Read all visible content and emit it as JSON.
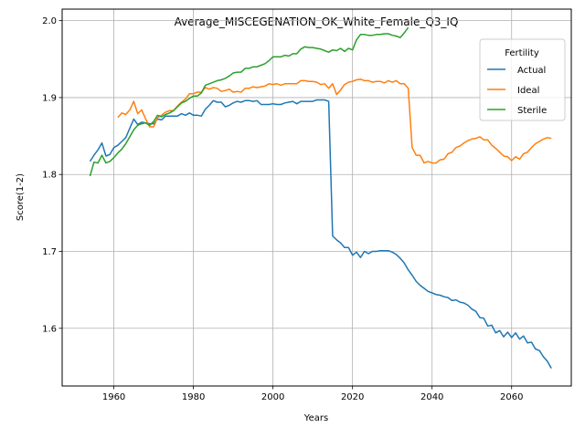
{
  "chart_data": {
    "type": "line",
    "title": "Average_MISCEGENATION_OK_White_Female_Q3_IQ",
    "xlabel": "Years",
    "ylabel": "Score(1-2)",
    "xlim": [
      1947,
      2075
    ],
    "ylim": [
      1.525,
      2.015
    ],
    "x_ticks": [
      1960,
      1980,
      2000,
      2020,
      2040,
      2060
    ],
    "y_ticks": [
      1.6,
      1.7,
      1.8,
      1.9,
      2.0
    ],
    "grid": true,
    "legend": {
      "title": "Fertility",
      "placement": "top-right"
    },
    "series": [
      {
        "name": "Actual",
        "color": "#1f77b4",
        "points": [
          [
            1954,
            1.817
          ],
          [
            1955,
            1.825
          ],
          [
            1956,
            1.832
          ],
          [
            1957,
            1.841
          ],
          [
            1958,
            1.824
          ],
          [
            1959,
            1.826
          ],
          [
            1960,
            1.835
          ],
          [
            1961,
            1.838
          ],
          [
            1962,
            1.843
          ],
          [
            1963,
            1.848
          ],
          [
            1964,
            1.86
          ],
          [
            1965,
            1.872
          ],
          [
            1966,
            1.865
          ],
          [
            1967,
            1.868
          ],
          [
            1968,
            1.867
          ],
          [
            1969,
            1.866
          ],
          [
            1970,
            1.866
          ],
          [
            1971,
            1.872
          ],
          [
            1972,
            1.871
          ],
          [
            1973,
            1.876
          ],
          [
            1974,
            1.876
          ],
          [
            1975,
            1.876
          ],
          [
            1976,
            1.876
          ],
          [
            1977,
            1.879
          ],
          [
            1978,
            1.877
          ],
          [
            1979,
            1.88
          ],
          [
            1980,
            1.877
          ],
          [
            1981,
            1.877
          ],
          [
            1982,
            1.876
          ],
          [
            1983,
            1.885
          ],
          [
            1984,
            1.89
          ],
          [
            1985,
            1.896
          ],
          [
            1986,
            1.894
          ],
          [
            1987,
            1.894
          ],
          [
            1988,
            1.888
          ],
          [
            1989,
            1.89
          ],
          [
            1990,
            1.893
          ],
          [
            1991,
            1.895
          ],
          [
            1992,
            1.894
          ],
          [
            1993,
            1.896
          ],
          [
            1994,
            1.896
          ],
          [
            1995,
            1.895
          ],
          [
            1996,
            1.896
          ],
          [
            1997,
            1.891
          ],
          [
            1998,
            1.891
          ],
          [
            1999,
            1.891
          ],
          [
            2000,
            1.892
          ],
          [
            2001,
            1.891
          ],
          [
            2002,
            1.891
          ],
          [
            2003,
            1.893
          ],
          [
            2004,
            1.894
          ],
          [
            2005,
            1.895
          ],
          [
            2006,
            1.892
          ],
          [
            2007,
            1.895
          ],
          [
            2008,
            1.895
          ],
          [
            2009,
            1.895
          ],
          [
            2010,
            1.895
          ],
          [
            2011,
            1.897
          ],
          [
            2012,
            1.897
          ],
          [
            2013,
            1.897
          ],
          [
            2014,
            1.895
          ],
          [
            2015,
            1.72
          ],
          [
            2016,
            1.715
          ],
          [
            2017,
            1.711
          ],
          [
            2018,
            1.705
          ],
          [
            2019,
            1.705
          ],
          [
            2020,
            1.695
          ],
          [
            2021,
            1.699
          ],
          [
            2022,
            1.692
          ],
          [
            2023,
            1.7
          ],
          [
            2024,
            1.697
          ],
          [
            2025,
            1.7
          ],
          [
            2026,
            1.7
          ],
          [
            2027,
            1.701
          ],
          [
            2028,
            1.701
          ],
          [
            2029,
            1.701
          ],
          [
            2030,
            1.699
          ],
          [
            2031,
            1.696
          ],
          [
            2032,
            1.691
          ],
          [
            2033,
            1.685
          ],
          [
            2034,
            1.676
          ],
          [
            2035,
            1.669
          ],
          [
            2036,
            1.661
          ],
          [
            2037,
            1.656
          ],
          [
            2038,
            1.652
          ],
          [
            2039,
            1.648
          ],
          [
            2040,
            1.646
          ],
          [
            2041,
            1.644
          ],
          [
            2042,
            1.643
          ],
          [
            2043,
            1.641
          ],
          [
            2044,
            1.64
          ],
          [
            2045,
            1.636
          ],
          [
            2046,
            1.637
          ],
          [
            2047,
            1.634
          ],
          [
            2048,
            1.633
          ],
          [
            2049,
            1.63
          ],
          [
            2050,
            1.625
          ],
          [
            2051,
            1.622
          ],
          [
            2052,
            1.614
          ],
          [
            2053,
            1.613
          ],
          [
            2054,
            1.603
          ],
          [
            2055,
            1.604
          ],
          [
            2056,
            1.594
          ],
          [
            2057,
            1.597
          ],
          [
            2058,
            1.589
          ],
          [
            2059,
            1.595
          ],
          [
            2060,
            1.588
          ],
          [
            2061,
            1.594
          ],
          [
            2062,
            1.586
          ],
          [
            2063,
            1.59
          ],
          [
            2064,
            1.581
          ],
          [
            2065,
            1.582
          ],
          [
            2066,
            1.573
          ],
          [
            2067,
            1.571
          ],
          [
            2068,
            1.563
          ],
          [
            2069,
            1.557
          ],
          [
            2070,
            1.548
          ]
        ]
      },
      {
        "name": "Ideal",
        "color": "#ff7f0e",
        "points": [
          [
            1961,
            1.874
          ],
          [
            1962,
            1.88
          ],
          [
            1963,
            1.878
          ],
          [
            1964,
            1.884
          ],
          [
            1965,
            1.895
          ],
          [
            1966,
            1.879
          ],
          [
            1967,
            1.884
          ],
          [
            1968,
            1.872
          ],
          [
            1969,
            1.862
          ],
          [
            1970,
            1.862
          ],
          [
            1971,
            1.874
          ],
          [
            1972,
            1.877
          ],
          [
            1973,
            1.881
          ],
          [
            1974,
            1.883
          ],
          [
            1975,
            1.883
          ],
          [
            1976,
            1.889
          ],
          [
            1977,
            1.894
          ],
          [
            1978,
            1.898
          ],
          [
            1979,
            1.905
          ],
          [
            1980,
            1.905
          ],
          [
            1981,
            1.907
          ],
          [
            1982,
            1.907
          ],
          [
            1983,
            1.913
          ],
          [
            1984,
            1.911
          ],
          [
            1985,
            1.913
          ],
          [
            1986,
            1.912
          ],
          [
            1987,
            1.908
          ],
          [
            1988,
            1.909
          ],
          [
            1989,
            1.911
          ],
          [
            1990,
            1.907
          ],
          [
            1991,
            1.908
          ],
          [
            1992,
            1.907
          ],
          [
            1993,
            1.912
          ],
          [
            1994,
            1.912
          ],
          [
            1995,
            1.914
          ],
          [
            1996,
            1.913
          ],
          [
            1997,
            1.914
          ],
          [
            1998,
            1.915
          ],
          [
            1999,
            1.918
          ],
          [
            2000,
            1.917
          ],
          [
            2001,
            1.918
          ],
          [
            2002,
            1.916
          ],
          [
            2003,
            1.918
          ],
          [
            2004,
            1.918
          ],
          [
            2005,
            1.918
          ],
          [
            2006,
            1.918
          ],
          [
            2007,
            1.922
          ],
          [
            2008,
            1.922
          ],
          [
            2009,
            1.921
          ],
          [
            2010,
            1.921
          ],
          [
            2011,
            1.92
          ],
          [
            2012,
            1.917
          ],
          [
            2013,
            1.918
          ],
          [
            2014,
            1.912
          ],
          [
            2015,
            1.918
          ],
          [
            2016,
            1.904
          ],
          [
            2017,
            1.91
          ],
          [
            2018,
            1.917
          ],
          [
            2019,
            1.92
          ],
          [
            2020,
            1.921
          ],
          [
            2021,
            1.923
          ],
          [
            2022,
            1.924
          ],
          [
            2023,
            1.922
          ],
          [
            2024,
            1.922
          ],
          [
            2025,
            1.92
          ],
          [
            2026,
            1.921
          ],
          [
            2027,
            1.921
          ],
          [
            2028,
            1.919
          ],
          [
            2029,
            1.922
          ],
          [
            2030,
            1.92
          ],
          [
            2031,
            1.922
          ],
          [
            2032,
            1.918
          ],
          [
            2033,
            1.918
          ],
          [
            2034,
            1.912
          ],
          [
            2035,
            1.835
          ],
          [
            2036,
            1.825
          ],
          [
            2037,
            1.825
          ],
          [
            2038,
            1.815
          ],
          [
            2039,
            1.817
          ],
          [
            2040,
            1.815
          ],
          [
            2041,
            1.815
          ],
          [
            2042,
            1.819
          ],
          [
            2043,
            1.82
          ],
          [
            2044,
            1.827
          ],
          [
            2045,
            1.829
          ],
          [
            2046,
            1.835
          ],
          [
            2047,
            1.837
          ],
          [
            2048,
            1.841
          ],
          [
            2049,
            1.844
          ],
          [
            2050,
            1.846
          ],
          [
            2051,
            1.847
          ],
          [
            2052,
            1.849
          ],
          [
            2053,
            1.845
          ],
          [
            2054,
            1.845
          ],
          [
            2055,
            1.838
          ],
          [
            2056,
            1.834
          ],
          [
            2057,
            1.829
          ],
          [
            2058,
            1.824
          ],
          [
            2059,
            1.823
          ],
          [
            2060,
            1.818
          ],
          [
            2061,
            1.823
          ],
          [
            2062,
            1.82
          ],
          [
            2063,
            1.827
          ],
          [
            2064,
            1.829
          ],
          [
            2065,
            1.835
          ],
          [
            2066,
            1.84
          ],
          [
            2067,
            1.843
          ],
          [
            2068,
            1.846
          ],
          [
            2069,
            1.848
          ],
          [
            2070,
            1.847
          ]
        ]
      },
      {
        "name": "Sterile",
        "color": "#2ca02c",
        "points": [
          [
            1954,
            1.798
          ],
          [
            1955,
            1.816
          ],
          [
            1956,
            1.815
          ],
          [
            1957,
            1.825
          ],
          [
            1958,
            1.815
          ],
          [
            1959,
            1.817
          ],
          [
            1960,
            1.822
          ],
          [
            1961,
            1.828
          ],
          [
            1962,
            1.833
          ],
          [
            1963,
            1.84
          ],
          [
            1964,
            1.849
          ],
          [
            1965,
            1.858
          ],
          [
            1966,
            1.864
          ],
          [
            1967,
            1.866
          ],
          [
            1968,
            1.867
          ],
          [
            1969,
            1.864
          ],
          [
            1970,
            1.869
          ],
          [
            1971,
            1.877
          ],
          [
            1972,
            1.875
          ],
          [
            1973,
            1.878
          ],
          [
            1974,
            1.88
          ],
          [
            1975,
            1.883
          ],
          [
            1976,
            1.888
          ],
          [
            1977,
            1.893
          ],
          [
            1978,
            1.895
          ],
          [
            1979,
            1.899
          ],
          [
            1980,
            1.902
          ],
          [
            1981,
            1.902
          ],
          [
            1982,
            1.906
          ],
          [
            1983,
            1.916
          ],
          [
            1984,
            1.918
          ],
          [
            1985,
            1.92
          ],
          [
            1986,
            1.922
          ],
          [
            1987,
            1.923
          ],
          [
            1988,
            1.925
          ],
          [
            1989,
            1.928
          ],
          [
            1990,
            1.932
          ],
          [
            1991,
            1.933
          ],
          [
            1992,
            1.933
          ],
          [
            1993,
            1.938
          ],
          [
            1994,
            1.938
          ],
          [
            1995,
            1.94
          ],
          [
            1996,
            1.94
          ],
          [
            1997,
            1.942
          ],
          [
            1998,
            1.944
          ],
          [
            1999,
            1.948
          ],
          [
            2000,
            1.953
          ],
          [
            2001,
            1.953
          ],
          [
            2002,
            1.953
          ],
          [
            2003,
            1.955
          ],
          [
            2004,
            1.954
          ],
          [
            2005,
            1.957
          ],
          [
            2006,
            1.957
          ],
          [
            2007,
            1.963
          ],
          [
            2008,
            1.966
          ],
          [
            2009,
            1.965
          ],
          [
            2010,
            1.965
          ],
          [
            2011,
            1.964
          ],
          [
            2012,
            1.963
          ],
          [
            2013,
            1.961
          ],
          [
            2014,
            1.959
          ],
          [
            2015,
            1.962
          ],
          [
            2016,
            1.961
          ],
          [
            2017,
            1.964
          ],
          [
            2018,
            1.96
          ],
          [
            2019,
            1.964
          ],
          [
            2020,
            1.962
          ],
          [
            2021,
            1.975
          ],
          [
            2022,
            1.982
          ],
          [
            2023,
            1.982
          ],
          [
            2024,
            1.981
          ],
          [
            2025,
            1.981
          ],
          [
            2026,
            1.982
          ],
          [
            2027,
            1.982
          ],
          [
            2028,
            1.983
          ],
          [
            2029,
            1.983
          ],
          [
            2030,
            1.981
          ],
          [
            2031,
            1.98
          ],
          [
            2032,
            1.978
          ],
          [
            2033,
            1.984
          ],
          [
            2034,
            1.991
          ]
        ]
      }
    ]
  }
}
